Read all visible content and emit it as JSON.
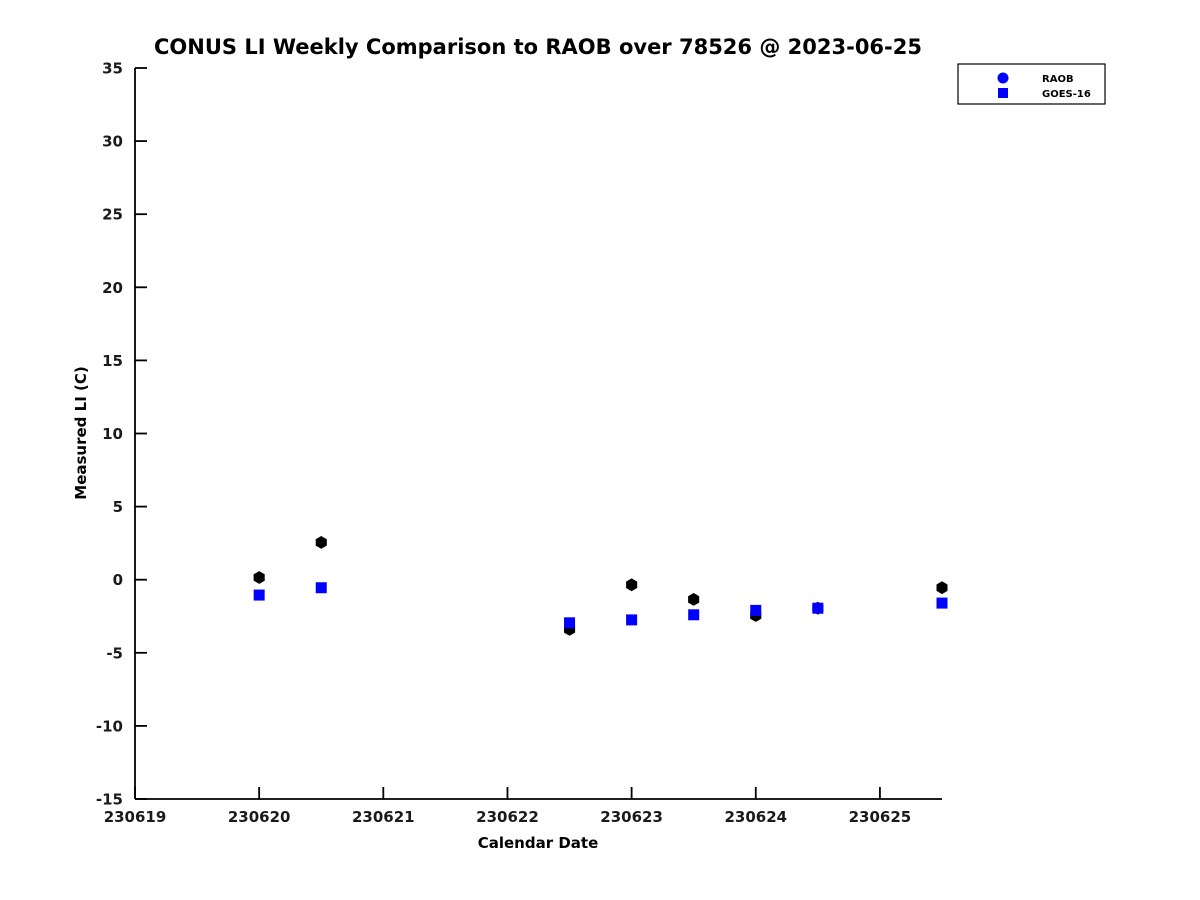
{
  "chart_data": {
    "type": "scatter",
    "title": "CONUS LI Weekly Comparison to RAOB over 78526 @ 2023-06-25",
    "xlabel": "Calendar Date",
    "ylabel": "Measured LI (C)",
    "xlim": [
      230619,
      230625.5
    ],
    "ylim": [
      -15,
      35
    ],
    "xticks": [
      "230619",
      "230620",
      "230621",
      "230622",
      "230623",
      "230624",
      "230625"
    ],
    "xtick_values": [
      230619,
      230620,
      230621,
      230622,
      230623,
      230624,
      230625
    ],
    "yticks": [
      "-15",
      "-10",
      "-5",
      "0",
      "5",
      "10",
      "15",
      "20",
      "25",
      "30",
      "35"
    ],
    "ytick_values": [
      -15,
      -10,
      -5,
      0,
      5,
      10,
      15,
      20,
      25,
      30,
      35
    ],
    "grid": false,
    "axis_color": "#000000",
    "background_color": "#ffffff",
    "legend_position": "top-right-outside",
    "series": [
      {
        "name": "RAOB",
        "marker": "hexagon",
        "color": "#000000",
        "points": [
          {
            "x": 230620.0,
            "y": 0.15
          },
          {
            "x": 230620.5,
            "y": 2.55
          },
          {
            "x": 230622.5,
            "y": -3.4
          },
          {
            "x": 230623.0,
            "y": -0.35
          },
          {
            "x": 230623.5,
            "y": -1.35
          },
          {
            "x": 230624.0,
            "y": -2.45
          },
          {
            "x": 230624.5,
            "y": -1.95
          },
          {
            "x": 230625.5,
            "y": -0.55
          }
        ]
      },
      {
        "name": "GOES-16",
        "marker": "square",
        "color": "#0000ff",
        "points": [
          {
            "x": 230620.0,
            "y": -1.05
          },
          {
            "x": 230620.5,
            "y": -0.55
          },
          {
            "x": 230622.5,
            "y": -2.95
          },
          {
            "x": 230623.0,
            "y": -2.75
          },
          {
            "x": 230623.5,
            "y": -2.4
          },
          {
            "x": 230624.0,
            "y": -2.1
          },
          {
            "x": 230624.5,
            "y": -1.95
          },
          {
            "x": 230625.5,
            "y": -1.6
          }
        ]
      }
    ],
    "legend": [
      {
        "label": "RAOB",
        "marker": "circle",
        "color": "#0000ff"
      },
      {
        "label": "GOES-16",
        "marker": "square",
        "color": "#0000ff"
      }
    ]
  }
}
